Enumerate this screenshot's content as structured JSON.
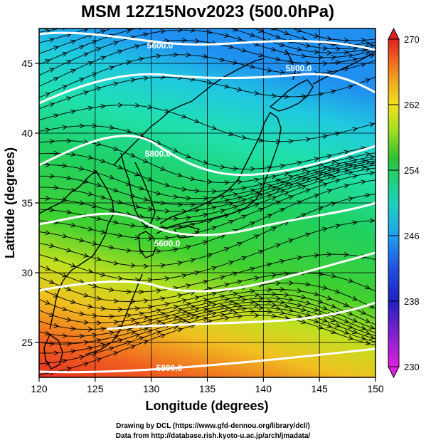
{
  "title": "MSM 12Z15Nov2023 (500.0hPa)",
  "x_axis": {
    "label": "Longitude (degrees)",
    "range": [
      120,
      150
    ],
    "ticks": [
      "120",
      "125",
      "130",
      "135",
      "140",
      "145",
      "150"
    ],
    "tick_values": [
      120,
      125,
      130,
      135,
      140,
      145,
      150
    ]
  },
  "y_axis": {
    "label": "Latitude  (degrees)",
    "range": [
      22.5,
      47.5
    ],
    "ticks": [
      "25",
      "30",
      "35",
      "40",
      "45"
    ],
    "tick_values": [
      25,
      30,
      35,
      40,
      45
    ]
  },
  "colorbar": {
    "range": [
      230,
      270
    ],
    "ticks": [
      "270",
      "262",
      "254",
      "246",
      "238",
      "230"
    ],
    "tick_values": [
      270,
      262,
      254,
      246,
      238,
      230
    ],
    "colors": [
      "#e020e0",
      "#8020d0",
      "#2020c0",
      "#2050e0",
      "#20a0f0",
      "#20d0c0",
      "#20d070",
      "#30c030",
      "#a0e020",
      "#f0e020",
      "#f0a020",
      "#f06020",
      "#e02020"
    ]
  },
  "contours": {
    "color": "#ffffff",
    "labels": [
      "5600.0",
      "5800.0",
      "5600.0",
      "5800.0",
      "5800.0"
    ]
  },
  "credits": {
    "line1": "Drawing by DCL (https://www.gfd-dennou.org/library/dcl/)",
    "line2": "Data from http://database.rish.kyoto-u.ac.jp/arch/jmadata/"
  }
}
